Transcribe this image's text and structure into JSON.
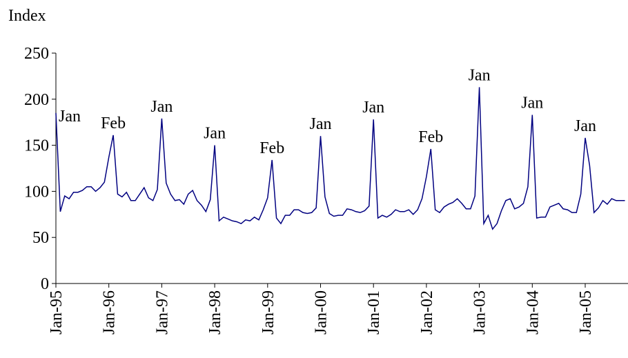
{
  "chart_data": {
    "type": "line",
    "ylabel": "Index",
    "categories": [
      "Jan-95",
      null,
      null,
      null,
      null,
      null,
      null,
      null,
      null,
      null,
      null,
      null,
      "Jan-96",
      null,
      null,
      null,
      null,
      null,
      null,
      null,
      null,
      null,
      null,
      null,
      "Jan-97",
      null,
      null,
      null,
      null,
      null,
      null,
      null,
      null,
      null,
      null,
      null,
      "Jan-98",
      null,
      null,
      null,
      null,
      null,
      null,
      null,
      null,
      null,
      null,
      null,
      "Jan-99",
      null,
      null,
      null,
      null,
      null,
      null,
      null,
      null,
      null,
      null,
      null,
      "Jan-00",
      null,
      null,
      null,
      null,
      null,
      null,
      null,
      null,
      null,
      null,
      null,
      "Jan-01",
      null,
      null,
      null,
      null,
      null,
      null,
      null,
      null,
      null,
      null,
      null,
      "Jan-02",
      null,
      null,
      null,
      null,
      null,
      null,
      null,
      null,
      null,
      null,
      null,
      "Jan-03",
      null,
      null,
      null,
      null,
      null,
      null,
      null,
      null,
      null,
      null,
      null,
      "Jan-04",
      null,
      null,
      null,
      null,
      null,
      null,
      null,
      null,
      null,
      null,
      null,
      "Jan-05",
      null,
      null,
      null,
      null,
      null,
      null,
      null,
      null,
      null
    ],
    "series": [
      {
        "color": "#000080",
        "values": [
          185,
          78,
          95,
          92,
          99,
          99,
          101,
          105,
          105,
          100,
          104,
          110,
          137,
          161,
          97,
          94,
          99,
          90,
          90,
          97,
          104,
          93,
          90,
          102,
          179,
          109,
          97,
          90,
          91,
          86,
          97,
          101,
          90,
          85,
          78,
          91,
          150,
          68,
          72,
          70,
          68,
          67,
          65,
          69,
          68,
          72,
          69,
          80,
          93,
          134,
          71,
          65,
          74,
          74,
          80,
          80,
          77,
          76,
          77,
          82,
          160,
          94,
          76,
          73,
          74,
          74,
          81,
          80,
          78,
          77,
          79,
          84,
          178,
          71,
          74,
          72,
          75,
          80,
          78,
          78,
          80,
          75,
          80,
          92,
          116,
          146,
          80,
          77,
          83,
          86,
          88,
          92,
          87,
          81,
          81,
          95,
          213,
          65,
          74,
          59,
          65,
          79,
          90,
          92,
          81,
          83,
          87,
          105,
          183,
          71,
          72,
          72,
          83,
          85,
          87,
          81,
          80,
          77,
          77,
          97,
          158,
          128,
          77,
          82,
          90,
          86,
          92,
          90,
          90,
          90
        ],
        "point_labels": [
          "Jan",
          null,
          null,
          null,
          null,
          null,
          null,
          null,
          null,
          null,
          null,
          null,
          null,
          "Feb",
          null,
          null,
          null,
          null,
          null,
          null,
          null,
          null,
          null,
          null,
          "Jan",
          null,
          null,
          null,
          null,
          null,
          null,
          null,
          null,
          null,
          null,
          null,
          "Jan",
          null,
          null,
          null,
          null,
          null,
          null,
          null,
          null,
          null,
          null,
          null,
          null,
          "Feb",
          null,
          null,
          null,
          null,
          null,
          null,
          null,
          null,
          null,
          null,
          "Jan",
          null,
          null,
          null,
          null,
          null,
          null,
          null,
          null,
          null,
          null,
          null,
          "Jan",
          null,
          null,
          null,
          null,
          null,
          null,
          null,
          null,
          null,
          null,
          null,
          null,
          "Feb",
          null,
          null,
          null,
          null,
          null,
          null,
          null,
          null,
          null,
          null,
          "Jan",
          null,
          null,
          null,
          null,
          null,
          null,
          null,
          null,
          null,
          null,
          null,
          "Jan",
          null,
          null,
          null,
          null,
          null,
          null,
          null,
          null,
          null,
          null,
          null,
          "Jan",
          null,
          null,
          null,
          null,
          null,
          null,
          null,
          null,
          null
        ]
      }
    ],
    "ylim": [
      0,
      250
    ],
    "yticks": [
      0,
      50,
      100,
      150,
      200,
      250
    ]
  }
}
